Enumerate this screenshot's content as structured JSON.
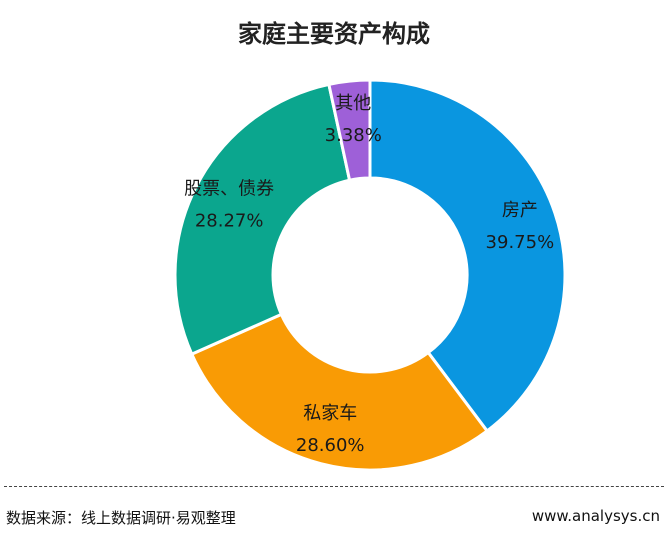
{
  "chart_data": {
    "type": "pie",
    "title": "家庭主要资产构成",
    "donut": true,
    "slices": [
      {
        "label": "房产",
        "value": 39.75,
        "value_label": "39.75%",
        "color": "#0a96e0"
      },
      {
        "label": "私家车",
        "value": 28.6,
        "value_label": "28.60%",
        "color": "#f99b05"
      },
      {
        "label": "股票、债券",
        "value": 28.27,
        "value_label": "28.27%",
        "color": "#0ba68e"
      },
      {
        "label": "其他",
        "value": 3.38,
        "value_label": "3.38%",
        "color": "#9e60d8"
      }
    ],
    "legend": "none"
  },
  "footer": {
    "source": "数据来源：线上数据调研·易观整理",
    "site": "www.analysys.cn"
  }
}
